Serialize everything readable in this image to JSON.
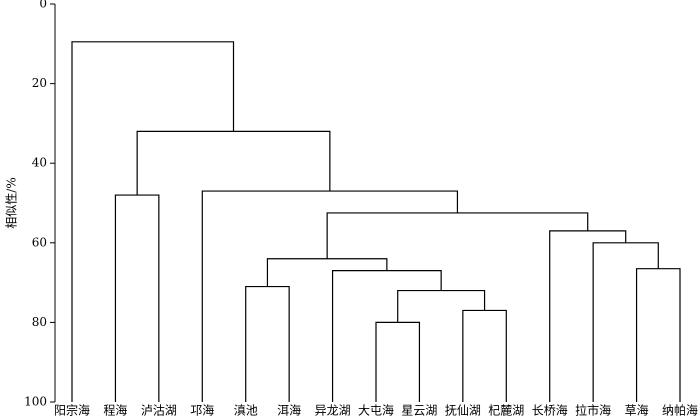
{
  "chart_data": {
    "type": "dendrogram",
    "y_label": "相似性/%",
    "ylim": [
      0,
      100
    ],
    "yticks": [
      0,
      20,
      40,
      60,
      80,
      100
    ],
    "color": "#000000",
    "leaves": [
      "阳宗海",
      "程海",
      "泸沽湖",
      "邛海",
      "滇池",
      "洱海",
      "异龙湖",
      "大屯海",
      "星云湖",
      "抚仙湖",
      "杞麓湖",
      "长桥海",
      "拉市海",
      "草海",
      "纳帕海"
    ],
    "merges": [
      {
        "left": 7,
        "right": 8,
        "height": 80
      },
      {
        "left": 9,
        "right": 10,
        "height": 77
      },
      {
        "left": 15,
        "right": 16,
        "height": 72
      },
      {
        "left": 4,
        "right": 5,
        "height": 71
      },
      {
        "left": 6,
        "right": 17,
        "height": 67
      },
      {
        "left": 13,
        "right": 14,
        "height": 66.5
      },
      {
        "left": 18,
        "right": 19,
        "height": 64
      },
      {
        "left": 12,
        "right": 20,
        "height": 60
      },
      {
        "left": 11,
        "right": 22,
        "height": 57
      },
      {
        "left": 21,
        "right": 23,
        "height": 52.5
      },
      {
        "left": 3,
        "right": 24,
        "height": 47
      },
      {
        "left": 1,
        "right": 2,
        "height": 48
      },
      {
        "left": 26,
        "right": 25,
        "height": 32
      },
      {
        "left": 0,
        "right": 27,
        "height": 9.5
      }
    ]
  }
}
